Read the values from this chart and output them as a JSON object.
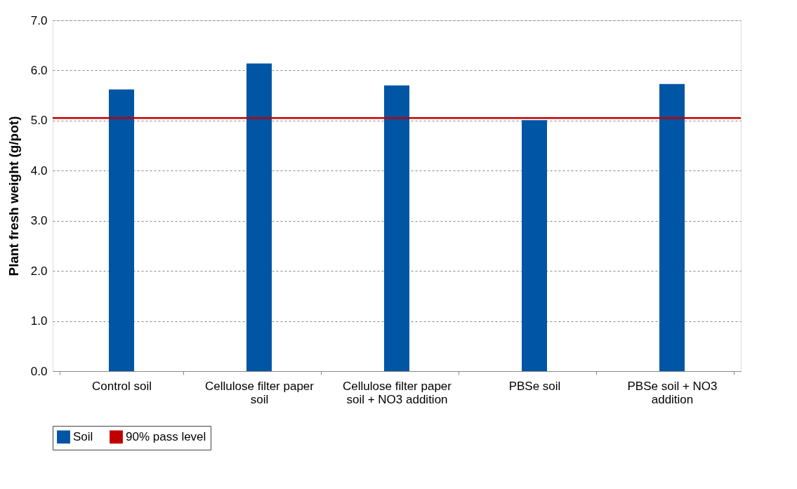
{
  "chart_data": {
    "type": "bar",
    "ylabel": "Plant fresh weight (g/pot)",
    "categories": [
      "Control soil",
      "Cellulose filter paper soil",
      "Cellulose filter paper soil + NO3 addition",
      "PBSe soil",
      "PBSe soil + NO3 addition"
    ],
    "series": [
      {
        "name": "Soil",
        "color": "#0055a5",
        "values": [
          5.62,
          6.14,
          5.7,
          5.01,
          5.73
        ]
      }
    ],
    "ref_lines": [
      {
        "axis": "y",
        "value": 5.05,
        "label": "90% pass level",
        "color": "#c00000",
        "line_style": "solid"
      }
    ],
    "ylim": [
      0,
      7
    ],
    "yticks": [
      {
        "value": 0,
        "label": "0.0"
      },
      {
        "value": 1,
        "label": "1.0"
      },
      {
        "value": 2,
        "label": "2.0"
      },
      {
        "value": 3,
        "label": "3.0"
      },
      {
        "value": 4,
        "label": "4.0"
      },
      {
        "value": 5,
        "label": "5.0"
      },
      {
        "value": 6,
        "label": "6.0"
      },
      {
        "value": 7,
        "label": "7.0"
      }
    ],
    "grid": "y",
    "legend": "bottom"
  }
}
